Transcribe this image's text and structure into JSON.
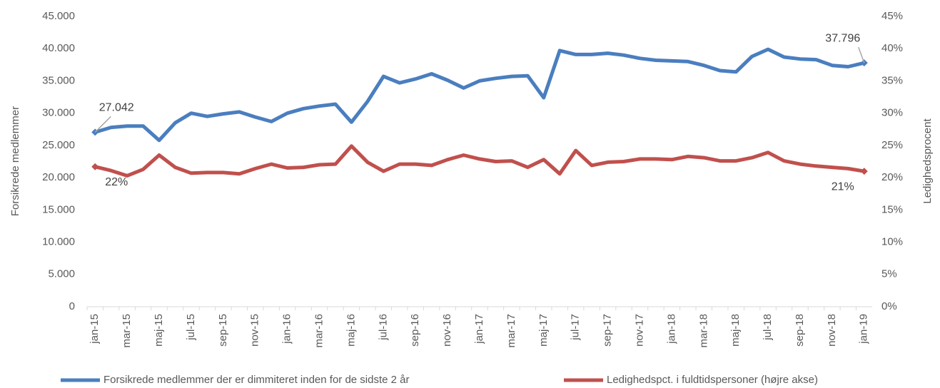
{
  "chart_data": {
    "type": "line",
    "categories": [
      "jan-15",
      null,
      "mar-15",
      null,
      "maj-15",
      null,
      "jul-15",
      null,
      "sep-15",
      null,
      "nov-15",
      null,
      "jan-16",
      null,
      "mar-16",
      null,
      "maj-16",
      null,
      "jul-16",
      null,
      "sep-16",
      null,
      "nov-16",
      null,
      "jan-17",
      null,
      "mar-17",
      null,
      "maj-17",
      null,
      "jul-17",
      null,
      "sep-17",
      null,
      "nov-17",
      null,
      "jan-18",
      null,
      "mar-18",
      null,
      "maj-18",
      null,
      "jul-18",
      null,
      "sep-18",
      null,
      "nov-18",
      null,
      "jan-19"
    ],
    "y_label": "Forsikrede medlemmer",
    "y2_label": "Ledighedsprocent",
    "series": [
      {
        "name": "Forsikrede medlemmer der er dimmiteret inden for de sidste 2 år",
        "color": "#4a7ebf",
        "values": [
          27042,
          27800,
          28000,
          28000,
          25800,
          28500,
          30000,
          29500,
          29900,
          30200,
          29400,
          28700,
          30000,
          30700,
          31100,
          31400,
          28600,
          31800,
          35700,
          34700,
          35300,
          36100,
          35100,
          33900,
          35000,
          35400,
          35700,
          35800,
          32400,
          39700,
          39100,
          39100,
          39300,
          39000,
          38500,
          38200,
          38100,
          38000,
          37400,
          36600,
          36400,
          38800,
          39900,
          38700,
          38400,
          38300,
          37400,
          37200,
          37796
        ],
        "value_labels": [
          "27.042",
          null,
          null,
          null,
          null,
          null,
          null,
          null,
          null,
          null,
          null,
          null,
          null,
          null,
          null,
          null,
          null,
          null,
          null,
          null,
          null,
          null,
          null,
          null,
          null,
          null,
          null,
          null,
          null,
          null,
          null,
          null,
          null,
          null,
          null,
          null,
          null,
          null,
          null,
          null,
          null,
          null,
          null,
          null,
          null,
          null,
          null,
          null,
          "37.796"
        ]
      },
      {
        "name": "Ledighedspct. i fuldtidspersoner (højre akse)",
        "color": "#c0504d",
        "axis": "y2",
        "values": [
          21.7,
          21.1,
          20.3,
          21.3,
          23.5,
          21.6,
          20.7,
          20.8,
          20.8,
          20.6,
          21.4,
          22.1,
          21.5,
          21.6,
          22.0,
          22.1,
          24.9,
          22.4,
          21.0,
          22.1,
          22.1,
          21.9,
          22.8,
          23.5,
          22.9,
          22.5,
          22.6,
          21.6,
          22.8,
          20.6,
          24.2,
          21.9,
          22.4,
          22.5,
          22.9,
          22.9,
          22.8,
          23.3,
          23.1,
          22.6,
          22.6,
          23.1,
          23.9,
          22.6,
          22.1,
          21.8,
          21.6,
          21.4,
          21.0
        ],
        "value_labels": [
          "22%",
          null,
          null,
          null,
          null,
          null,
          null,
          null,
          null,
          null,
          null,
          null,
          null,
          null,
          null,
          null,
          null,
          null,
          null,
          null,
          null,
          null,
          null,
          null,
          null,
          null,
          null,
          null,
          null,
          null,
          null,
          null,
          null,
          null,
          null,
          null,
          null,
          null,
          null,
          null,
          null,
          null,
          null,
          null,
          null,
          null,
          null,
          null,
          "21%"
        ]
      }
    ],
    "ylim": [
      0,
      45000
    ],
    "yticks": [
      0,
      {
        "value": 5000,
        "label": "5.000"
      },
      {
        "value": 10000,
        "label": "10.000"
      },
      {
        "value": 15000,
        "label": "15.000"
      },
      {
        "value": 20000,
        "label": "20.000"
      },
      {
        "value": 25000,
        "label": "25.000"
      },
      {
        "value": 30000,
        "label": "30.000"
      },
      {
        "value": 35000,
        "label": "35.000"
      },
      {
        "value": 40000,
        "label": "40.000"
      },
      {
        "value": 45000,
        "label": "45.000"
      }
    ],
    "y2lim": [
      0,
      45
    ],
    "y2ticks": [
      {
        "value": 0,
        "label": "0%"
      },
      {
        "value": 5,
        "label": "5%"
      },
      {
        "value": 10,
        "label": "10%"
      },
      {
        "value": 15,
        "label": "15%"
      },
      {
        "value": 20,
        "label": "20%"
      },
      {
        "value": 25,
        "label": "25%"
      },
      {
        "value": 30,
        "label": "30%"
      },
      {
        "value": 35,
        "label": "35%"
      },
      {
        "value": 40,
        "label": "40%"
      },
      {
        "value": 45,
        "label": "45%"
      }
    ],
    "grid": false,
    "legend": "bottom"
  }
}
